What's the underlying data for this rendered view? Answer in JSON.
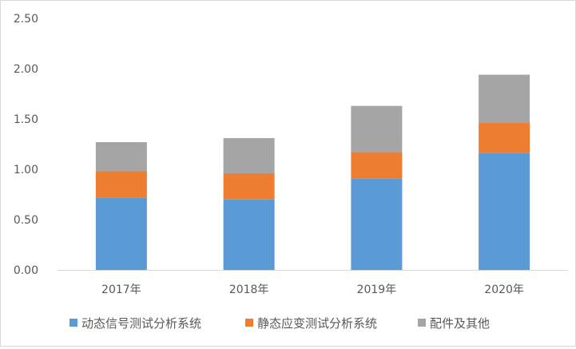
{
  "chart_data": {
    "type": "bar",
    "stacked": true,
    "categories": [
      "2017年",
      "2018年",
      "2019年",
      "2020年"
    ],
    "series": [
      {
        "name": "动态信号测试分析系统",
        "values": [
          0.72,
          0.7,
          0.91,
          1.16
        ],
        "color": "#5b9bd5"
      },
      {
        "name": "静态应变测试分析系统",
        "values": [
          0.26,
          0.26,
          0.26,
          0.3
        ],
        "color": "#ed7d31"
      },
      {
        "name": "配件及其他",
        "values": [
          0.29,
          0.35,
          0.46,
          0.48
        ],
        "color": "#a5a5a5"
      }
    ],
    "y_ticks": [
      "0.00",
      "0.50",
      "1.00",
      "1.50",
      "2.00",
      "2.50"
    ],
    "ylim": [
      0,
      2.5
    ],
    "grid": false,
    "legend_position": "bottom",
    "title": "",
    "xlabel": "",
    "ylabel": ""
  }
}
